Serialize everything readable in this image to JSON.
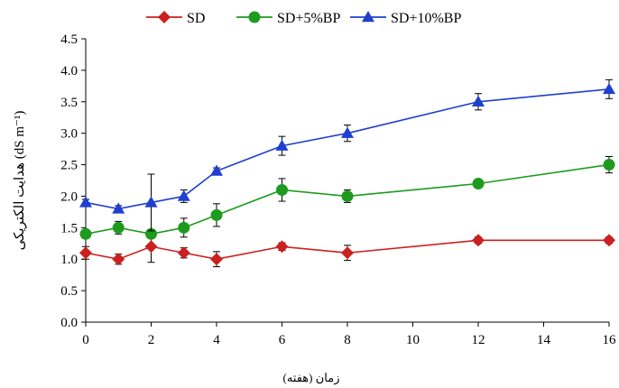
{
  "chart_data": {
    "type": "line",
    "xlabel": "زمان (هفته)",
    "ylabel": "هدایت الکتریکی (dS m⁻¹)",
    "xlim": [
      0,
      16
    ],
    "ylim": [
      0,
      4.5
    ],
    "xticks": [
      0,
      2,
      4,
      6,
      8,
      10,
      12,
      14,
      16
    ],
    "yticks": [
      0.0,
      0.5,
      1.0,
      1.5,
      2.0,
      2.5,
      3.0,
      3.5,
      4.0,
      4.5
    ],
    "xtick_labels": [
      "0",
      "2",
      "4",
      "6",
      "8",
      "10",
      "12",
      "14",
      "16"
    ],
    "ytick_labels": [
      "0.0",
      "0.5",
      "1.0",
      "1.5",
      "2.0",
      "2.5",
      "3.0",
      "3.5",
      "4.0",
      "4.5"
    ],
    "grid": false,
    "legend_position": "top-center",
    "x": [
      0,
      1,
      2,
      3,
      4,
      6,
      8,
      12,
      16
    ],
    "series": [
      {
        "name": "SD",
        "color": "#cc1f1f",
        "marker": "diamond",
        "values": [
          1.1,
          1.0,
          1.2,
          1.1,
          1.0,
          1.2,
          1.1,
          1.3,
          1.3
        ],
        "errors": [
          0.1,
          0.08,
          0.25,
          0.08,
          0.12,
          0.06,
          0.12,
          0.05,
          0.05
        ]
      },
      {
        "name": "SD+5%BP",
        "color": "#1e9a1e",
        "marker": "circle",
        "values": [
          1.4,
          1.5,
          1.4,
          1.5,
          1.7,
          2.1,
          2.0,
          2.2,
          2.5
        ],
        "errors": [
          0.05,
          0.1,
          0.05,
          0.15,
          0.18,
          0.18,
          0.1,
          0.05,
          0.13
        ]
      },
      {
        "name": "SD+10%BP",
        "color": "#1f3fcf",
        "marker": "triangle",
        "values": [
          1.9,
          1.8,
          1.9,
          2.0,
          2.4,
          2.8,
          3.0,
          3.5,
          3.7
        ],
        "errors": [
          0.05,
          0.05,
          0.45,
          0.1,
          0.05,
          0.15,
          0.13,
          0.13,
          0.15
        ]
      }
    ]
  }
}
